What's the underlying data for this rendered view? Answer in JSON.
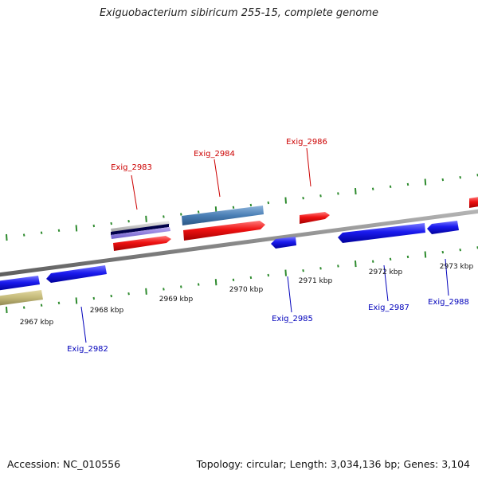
{
  "title": "Exiguobacterium sibiricum 255-15, complete genome",
  "footer": {
    "accession": "Accession: NC_010556",
    "info": "Topology: circular; Length: 3,034,136 bp; Genes: 3,104"
  },
  "colors": {
    "background": "#ffffff",
    "backbone": "#888888",
    "tick": "#2e8b2e",
    "forward_gene": "#ee1111",
    "reverse_gene": "#1a1aee",
    "forward_label": "#cc0000",
    "reverse_label": "#0000bb",
    "steelblue_gene": "#4a7fb5",
    "khaki_gene": "#c2b878"
  },
  "scale_labels": [
    "2967 kbp",
    "2968 kbp",
    "2969 kbp",
    "2970 kbp",
    "2971 kbp",
    "2972 kbp",
    "2973 kbp"
  ],
  "gene_labels": {
    "forward": [
      "Exig_2983",
      "Exig_2984",
      "Exig_2986"
    ],
    "reverse": [
      "Exig_2982",
      "Exig_2985",
      "Exig_2987",
      "Exig_2988"
    ]
  }
}
